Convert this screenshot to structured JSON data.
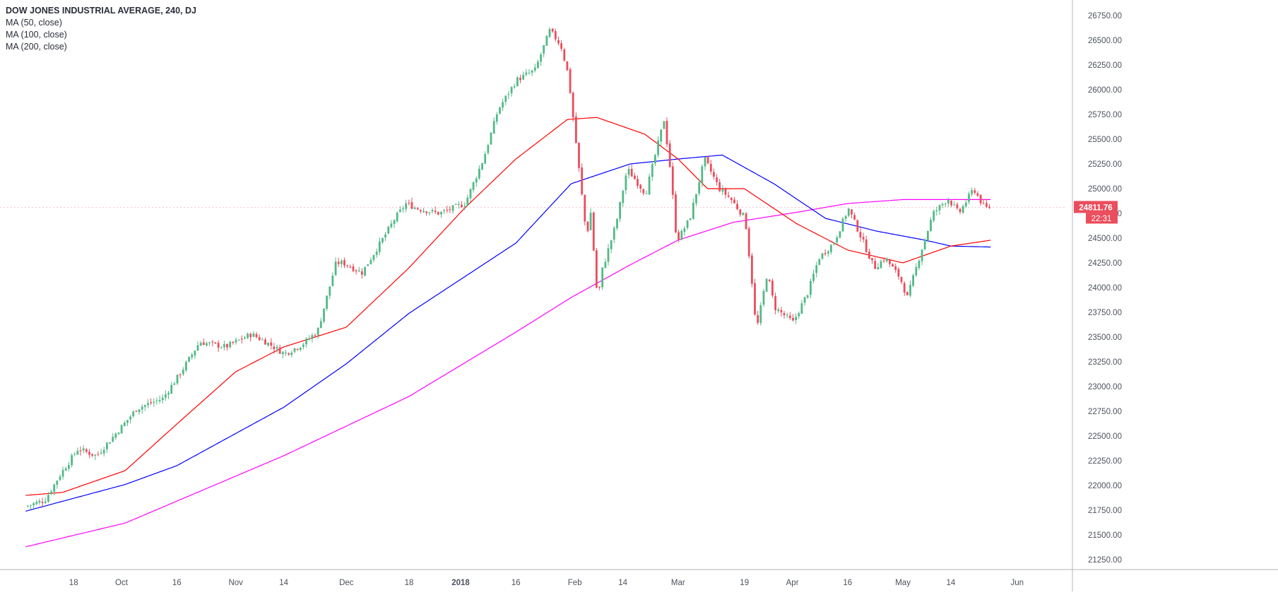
{
  "chart_data": {
    "type": "candlestick",
    "title": "DOW JONES INDUSTRIAL AVERAGE, 240, DJ",
    "indicators": [
      "MA (50, close)",
      "MA (100, close)",
      "MA (200, close)"
    ],
    "x_tick_labels": [
      "18",
      "Oct",
      "16",
      "Nov",
      "14",
      "Dec",
      "18",
      "2018",
      "16",
      "Feb",
      "14",
      "Mar",
      "19",
      "Apr",
      "16",
      "May",
      "14",
      "Jun"
    ],
    "y_tick_labels": [
      "26750.00",
      "26500.00",
      "26250.00",
      "26000.00",
      "25750.00",
      "25500.00",
      "25250.00",
      "25000.00",
      "24750.00",
      "24500.00",
      "24250.00",
      "24000.00",
      "23750.00",
      "23500.00",
      "23250.00",
      "23000.00",
      "22750.00",
      "22500.00",
      "22250.00",
      "22000.00",
      "21750.00",
      "21500.00",
      "21250.00"
    ],
    "ylim": [
      21100,
      26850
    ],
    "last_price": "24811.76",
    "countdown": "22:31",
    "price_path": [
      [
        "Sep 05",
        21780
      ],
      [
        "Sep 11",
        21850
      ],
      [
        "Sep 15",
        22100
      ],
      [
        "Sep 20",
        22370
      ],
      [
        "Sep 25",
        22300
      ],
      [
        "Oct 02",
        22600
      ],
      [
        "Oct 06",
        22780
      ],
      [
        "Oct 13",
        22880
      ],
      [
        "Oct 18",
        23150
      ],
      [
        "Oct 23",
        23450
      ],
      [
        "Oct 30",
        23400
      ],
      [
        "Nov 06",
        23530
      ],
      [
        "Nov 10",
        23450
      ],
      [
        "Nov 15",
        23330
      ],
      [
        "Nov 20",
        23430
      ],
      [
        "Nov 24",
        23560
      ],
      [
        "Nov 29",
        24250
      ],
      [
        "Dec 01",
        24250
      ],
      [
        "Dec 06",
        24150
      ],
      [
        "Dec 11",
        24450
      ],
      [
        "Dec 15",
        24700
      ],
      [
        "Dec 18",
        24850
      ],
      [
        "Dec 21",
        24800
      ],
      [
        "Dec 27",
        24750
      ],
      [
        "Jan 03",
        24850
      ],
      [
        "Jan 08",
        25300
      ],
      [
        "Jan 12",
        25800
      ],
      [
        "Jan 17",
        26100
      ],
      [
        "Jan 22",
        26200
      ],
      [
        "Jan 26",
        26600
      ],
      [
        "Jan 29",
        26450
      ],
      [
        "Jan 31",
        26150
      ],
      [
        "Feb 02",
        25500
      ],
      [
        "Feb 05",
        24500
      ],
      [
        "Feb 06",
        24800
      ],
      [
        "Feb 08",
        23850
      ],
      [
        "Feb 09",
        24150
      ],
      [
        "Feb 13",
        24650
      ],
      [
        "Feb 16",
        25200
      ],
      [
        "Feb 21",
        24950
      ],
      [
        "Feb 26",
        25700
      ],
      [
        "Feb 28",
        25100
      ],
      [
        "Mar 01",
        24600
      ],
      [
        "Mar 02",
        24500
      ],
      [
        "Mar 05",
        24700
      ],
      [
        "Mar 09",
        25300
      ],
      [
        "Mar 13",
        25000
      ],
      [
        "Mar 16",
        24900
      ],
      [
        "Mar 20",
        24700
      ],
      [
        "Mar 22",
        24000
      ],
      [
        "Mar 23",
        23550
      ],
      [
        "Mar 26",
        24150
      ],
      [
        "Mar 28",
        23800
      ],
      [
        "Apr 02",
        23650
      ],
      [
        "Apr 06",
        23950
      ],
      [
        "Apr 09",
        24300
      ],
      [
        "Apr 13",
        24450
      ],
      [
        "Apr 17",
        24800
      ],
      [
        "Apr 20",
        24550
      ],
      [
        "Apr 24",
        24200
      ],
      [
        "Apr 27",
        24300
      ],
      [
        "May 01",
        24100
      ],
      [
        "May 03",
        23900
      ],
      [
        "May 07",
        24400
      ],
      [
        "May 10",
        24750
      ],
      [
        "May 14",
        24900
      ],
      [
        "May 17",
        24750
      ],
      [
        "May 21",
        25000
      ],
      [
        "May 24",
        24800
      ],
      [
        "May 25",
        24812
      ]
    ],
    "ma50_path": [
      [
        "Sep 05",
        21900
      ],
      [
        "Sep 15",
        21930
      ],
      [
        "Oct 02",
        22150
      ],
      [
        "Oct 16",
        22620
      ],
      [
        "Nov 01",
        23150
      ],
      [
        "Nov 14",
        23400
      ],
      [
        "Dec 01",
        23600
      ],
      [
        "Dec 18",
        24200
      ],
      [
        "Jan 02",
        24800
      ],
      [
        "Jan 16",
        25300
      ],
      [
        "Jan 30",
        25700
      ],
      [
        "Feb 07",
        25720
      ],
      [
        "Feb 20",
        25550
      ],
      [
        "Mar 01",
        25300
      ],
      [
        "Mar 09",
        25000
      ],
      [
        "Mar 19",
        25000
      ],
      [
        "Apr 02",
        24650
      ],
      [
        "Apr 16",
        24380
      ],
      [
        "May 01",
        24250
      ],
      [
        "May 14",
        24420
      ],
      [
        "May 25",
        24480
      ]
    ],
    "ma100_path": [
      [
        "Sep 05",
        21740
      ],
      [
        "Oct 02",
        22010
      ],
      [
        "Oct 16",
        22200
      ],
      [
        "Nov 14",
        22790
      ],
      [
        "Dec 01",
        23230
      ],
      [
        "Dec 18",
        23740
      ],
      [
        "Jan 16",
        24450
      ],
      [
        "Jan 31",
        25050
      ],
      [
        "Feb 16",
        25250
      ],
      [
        "Mar 01",
        25300
      ],
      [
        "Mar 13",
        25340
      ],
      [
        "Mar 27",
        25050
      ],
      [
        "Apr 10",
        24700
      ],
      [
        "Apr 24",
        24570
      ],
      [
        "May 07",
        24480
      ],
      [
        "May 14",
        24420
      ],
      [
        "May 25",
        24410
      ]
    ],
    "ma200_path": [
      [
        "Sep 05",
        21380
      ],
      [
        "Oct 02",
        21620
      ],
      [
        "Nov 14",
        22300
      ],
      [
        "Dec 18",
        22900
      ],
      [
        "Jan 16",
        23550
      ],
      [
        "Jan 31",
        23900
      ],
      [
        "Feb 16",
        24230
      ],
      [
        "Mar 01",
        24480
      ],
      [
        "Mar 16",
        24660
      ],
      [
        "Apr 02",
        24760
      ],
      [
        "Apr 16",
        24850
      ],
      [
        "May 01",
        24890
      ],
      [
        "May 25",
        24890
      ]
    ],
    "colors": {
      "up": "#53b987",
      "down": "#eb4d5c",
      "ma50": "#ff0000",
      "ma100": "#0000ff",
      "ma200": "#ff00ff",
      "price_label_bg": "#eb4d5c",
      "axis_text": "#4c525e",
      "divider": "#b2b5be"
    }
  }
}
